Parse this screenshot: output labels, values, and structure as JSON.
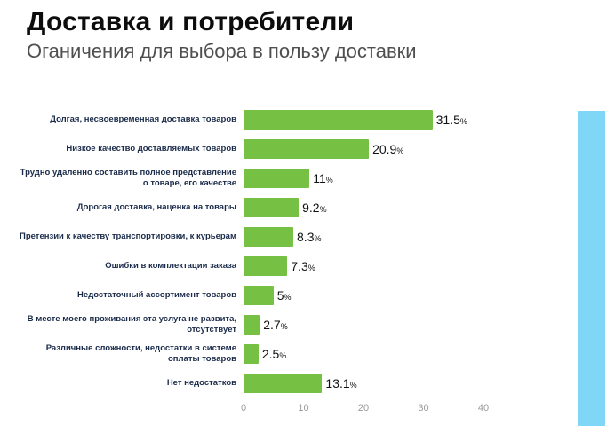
{
  "header": {
    "title": "Доставка и потребители",
    "subtitle": "Оганичения для выбора в пользу доставки"
  },
  "chart_data": {
    "type": "bar",
    "orientation": "horizontal",
    "title": "Доставка и потребители",
    "subtitle": "Оганичения для выбора в пользу доставки",
    "categories": [
      "Долгая, несвоевременная доставка товаров",
      "Низкое качество доставляемых товаров",
      "Трудно удаленно составить полное представление о товаре, его качестве",
      "Дорогая доставка, наценка на товары",
      "Претензии к качеству транспортировки, к курьерам",
      "Ошибки в комплектации заказа",
      "Недостаточный ассортимент товаров",
      "В месте моего проживания эта услуга не развита, отсутствует",
      "Различные сложности, недостатки в системе оплаты товаров",
      "Нет недостатков"
    ],
    "values": [
      31.5,
      20.9,
      11,
      9.2,
      8.3,
      7.3,
      5,
      2.7,
      2.5,
      13.1
    ],
    "value_suffix": "%",
    "xlim": [
      0,
      40
    ],
    "x_ticks": [
      0,
      10,
      20,
      30,
      40
    ],
    "grid": false,
    "legend": "none",
    "colors": {
      "bar": "#76c043",
      "accent_side_bar": "#7fd6f7",
      "label": "#1a2b4a",
      "value_text": "#111111",
      "axis_text": "#9b9b9b"
    }
  }
}
